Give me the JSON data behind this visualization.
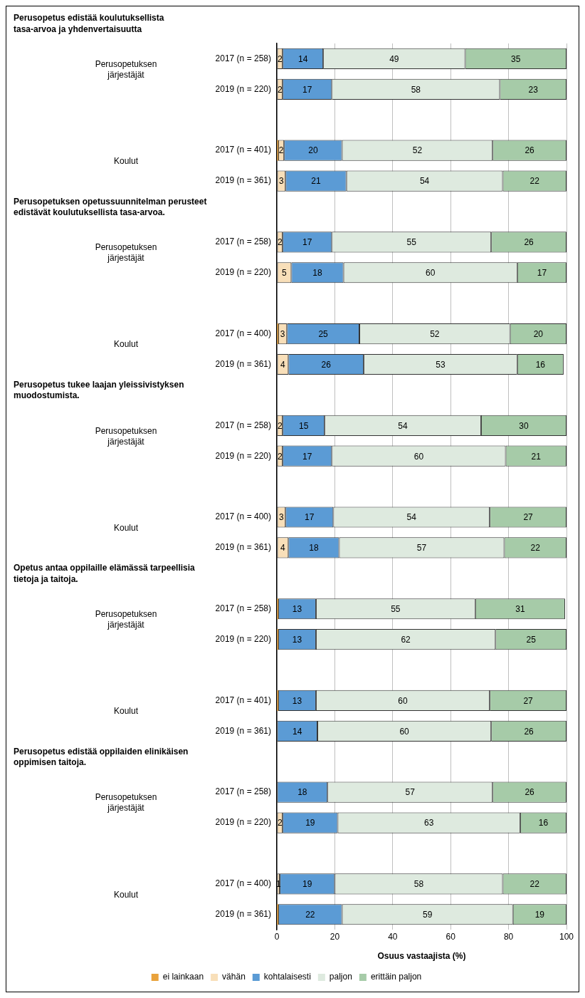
{
  "chart_data": {
    "type": "bar",
    "orientation": "horizontal",
    "stacked": true,
    "categories": [
      "2017 (n = 258)",
      "2019 (n = 220)",
      null,
      "2017 (n = 401)",
      "2019 (n = 361)",
      null,
      "2017 (n = 258)",
      "2019 (n = 220)",
      null,
      "2017 (n = 400)",
      "2019 (n = 361)",
      null,
      "2017 (n = 258)",
      "2019 (n = 220)",
      null,
      "2017 (n = 400)",
      "2019 (n = 361)",
      null,
      "2017 (n = 258)",
      "2019 (n = 220)",
      null,
      "2017 (n = 401)",
      "2019 (n = 361)",
      null,
      "2017 (n = 258)",
      "2019 (n = 220)",
      null,
      "2017 (n = 400)",
      "2019 (n = 361)"
    ],
    "series": [
      {
        "name": "ei lainkaan",
        "color": "#e9a23b",
        "values": [
          null,
          null,
          null,
          0.5,
          null,
          null,
          null,
          null,
          null,
          0.5,
          null,
          null,
          null,
          null,
          null,
          null,
          null,
          null,
          0.5,
          0.5,
          null,
          0.5,
          null,
          null,
          null,
          null,
          null,
          null,
          0.5
        ],
        "value_labels": [
          null,
          null,
          null,
          null,
          null,
          null,
          null,
          null,
          null,
          null,
          null,
          null,
          null,
          null,
          null,
          null,
          null,
          null,
          null,
          null,
          null,
          null,
          null,
          null,
          null,
          null,
          null,
          null,
          null
        ]
      },
      {
        "name": "vähän",
        "color": "#f8dfb9",
        "values": [
          2,
          2,
          null,
          2,
          3,
          null,
          2,
          5,
          null,
          3,
          4,
          null,
          2,
          2,
          null,
          3,
          4,
          null,
          null,
          null,
          null,
          null,
          null,
          null,
          null,
          2,
          null,
          1,
          null
        ],
        "value_labels": [
          "2",
          "2",
          null,
          "2",
          "3",
          null,
          "2",
          "5",
          null,
          "3",
          "4",
          null,
          "2",
          "2",
          null,
          "3",
          "4",
          null,
          null,
          null,
          null,
          null,
          null,
          null,
          null,
          "2",
          null,
          "1",
          null
        ]
      },
      {
        "name": "kohtalaisesti",
        "color": "#5b9bd5",
        "values": [
          14,
          17,
          null,
          20,
          21,
          null,
          17,
          18,
          null,
          25,
          26,
          null,
          14.5,
          17,
          null,
          16.5,
          17.5,
          null,
          13,
          13,
          null,
          13,
          14,
          null,
          17.5,
          19,
          null,
          19,
          22
        ],
        "value_labels": [
          "14",
          "17",
          null,
          "20",
          "21",
          null,
          "17",
          "18",
          null,
          "25",
          "26",
          null,
          "15",
          "17",
          null,
          "17",
          "18",
          null,
          "13",
          "13",
          null,
          "13",
          "14",
          null,
          "18",
          "19",
          null,
          "19",
          "22"
        ]
      },
      {
        "name": "paljon",
        "color": "#deeadf",
        "values": [
          49,
          58,
          null,
          52,
          54,
          null,
          55,
          60,
          null,
          52,
          53,
          null,
          54,
          60,
          null,
          54,
          57,
          null,
          55,
          62,
          null,
          60,
          60,
          null,
          57,
          63,
          null,
          58,
          59
        ],
        "value_labels": [
          "49",
          "58",
          null,
          "52",
          "54",
          null,
          "55",
          "60",
          null,
          "52",
          "53",
          null,
          "54",
          "60",
          null,
          "54",
          "57",
          null,
          "55",
          "62",
          null,
          "60",
          "60",
          null,
          "57",
          "63",
          null,
          "58",
          "59"
        ]
      },
      {
        "name": "erittäin paljon",
        "color": "#a6cba8",
        "values": [
          35,
          23,
          null,
          25.5,
          22,
          null,
          26,
          17,
          null,
          19.5,
          16,
          null,
          29.5,
          21,
          null,
          26.5,
          21.5,
          null,
          31,
          24.5,
          null,
          26.5,
          26,
          null,
          25.5,
          16,
          null,
          22,
          18.5
        ],
        "value_labels": [
          "35",
          "23",
          null,
          "26",
          "22",
          null,
          "26",
          "17",
          null,
          "20",
          "16",
          null,
          "30",
          "21",
          null,
          "27",
          "22",
          null,
          "31",
          "25",
          null,
          "27",
          "26",
          null,
          "26",
          "16",
          null,
          "22",
          "19"
        ]
      }
    ],
    "xlim": [
      0,
      100
    ],
    "xticks": [
      0,
      20,
      40,
      60,
      80,
      100
    ],
    "xlabel": "Osuus vastaajista (%)",
    "grid": "x",
    "legend": "bottom",
    "annotations": [
      "Perusopetus edistää koulutuksellista tasa-arvoa ja yhdenvertaisuutta",
      "Perusopetuksen järjestäjät",
      "Koulut",
      "Perusopetuksen opetussuunnitelman perusteet edistävät koulutuksellista tasa-arvoa.",
      "Perusopetuksen järjestäjät",
      "Koulut",
      "Perusopetus tukee laajan yleissivistyksen muodostumista.",
      "Perusopetuksen järjestäjät",
      "Koulut",
      "Opetus antaa oppilaille elämässä tarpeellisia tietoja ja taitoja.",
      "Perusopetuksen järjestäjät",
      "Koulut",
      "Perusopetus edistää oppilaiden elinikäisen oppimisen taitoja.",
      "Perusopetuksen järjestäjät",
      "Koulut"
    ]
  }
}
